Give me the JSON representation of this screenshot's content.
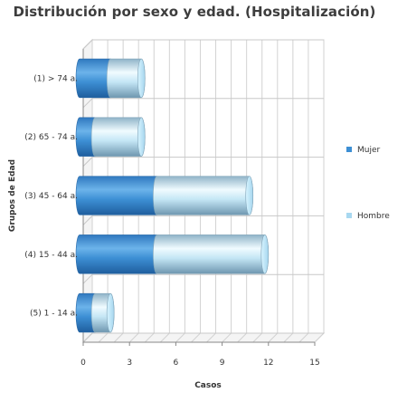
{
  "chart_data": {
    "type": "bar",
    "orientation": "horizontal",
    "stacked": true,
    "style": "3d-cylinder",
    "title": "Distribución por sexo y edad. (Hospitalización)",
    "xlabel": "Casos",
    "ylabel": "Grupos de Edad",
    "xlim": [
      0,
      15
    ],
    "xticks": [
      0,
      3,
      6,
      9,
      12,
      15
    ],
    "grid": true,
    "legend_position": "right",
    "categories": [
      "(1) > 74 a.",
      "(2) 65 - 74 a.",
      "(3) 45 - 64 a.",
      "(4) 15 - 44 a.",
      "(5) 1 - 14 a."
    ],
    "series": [
      {
        "name": "Mujer",
        "values": [
          2,
          1,
          5,
          5,
          1
        ],
        "color": "#3d8fd4"
      },
      {
        "name": "Hombre",
        "values": [
          2,
          3,
          6,
          7,
          1
        ],
        "color": "#a8d8f0"
      }
    ]
  }
}
